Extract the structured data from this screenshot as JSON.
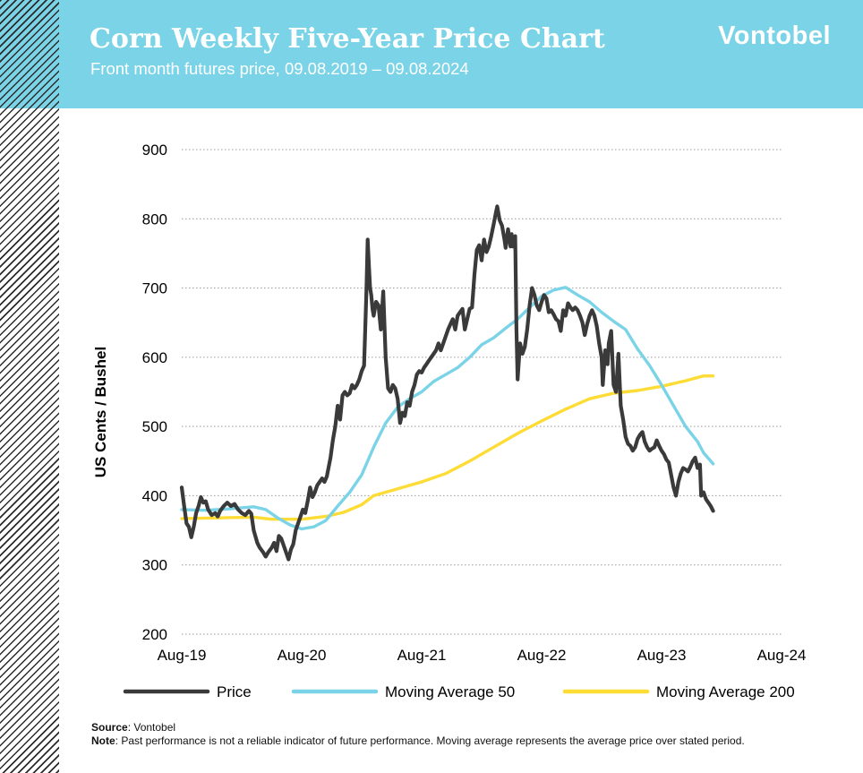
{
  "header": {
    "title": "Corn Weekly Five-Year Price Chart",
    "subtitle": "Front month futures price, 09.08.2019 – 09.08.2024",
    "brand": "Vontobel"
  },
  "colors": {
    "header_bg": "#7ad3e6",
    "price": "#3a3a3a",
    "ma50": "#7ad3e6",
    "ma200": "#fddc35"
  },
  "chart_data": {
    "type": "line",
    "title": "Corn Weekly Five-Year Price Chart",
    "xlabel": "",
    "ylabel": "US Cents / Bushel",
    "ylim": [
      200,
      900
    ],
    "yticks": [
      900,
      800,
      700,
      600,
      500,
      400,
      300,
      200
    ],
    "xlim": [
      0,
      5
    ],
    "xticks": [
      {
        "label": "Aug-19",
        "x": 0
      },
      {
        "label": "Aug-20",
        "x": 1
      },
      {
        "label": "Aug-21",
        "x": 2
      },
      {
        "label": "Aug-22",
        "x": 3
      },
      {
        "label": "Aug-23",
        "x": 4
      },
      {
        "label": "Aug-24",
        "x": 5
      }
    ],
    "grid": "horizontal-dotted",
    "legend": "bottom",
    "series": [
      {
        "name": "Price",
        "key": "price",
        "points": [
          [
            0.0,
            412
          ],
          [
            0.02,
            385
          ],
          [
            0.04,
            360
          ],
          [
            0.06,
            355
          ],
          [
            0.08,
            340
          ],
          [
            0.1,
            355
          ],
          [
            0.12,
            375
          ],
          [
            0.14,
            385
          ],
          [
            0.16,
            398
          ],
          [
            0.18,
            390
          ],
          [
            0.2,
            392
          ],
          [
            0.22,
            380
          ],
          [
            0.25,
            372
          ],
          [
            0.28,
            375
          ],
          [
            0.3,
            370
          ],
          [
            0.32,
            378
          ],
          [
            0.35,
            385
          ],
          [
            0.38,
            390
          ],
          [
            0.41,
            385
          ],
          [
            0.44,
            388
          ],
          [
            0.47,
            380
          ],
          [
            0.5,
            375
          ],
          [
            0.53,
            372
          ],
          [
            0.56,
            378
          ],
          [
            0.58,
            374
          ],
          [
            0.6,
            350
          ],
          [
            0.63,
            332
          ],
          [
            0.65,
            325
          ],
          [
            0.68,
            318
          ],
          [
            0.7,
            312
          ],
          [
            0.72,
            318
          ],
          [
            0.75,
            325
          ],
          [
            0.77,
            332
          ],
          [
            0.79,
            320
          ],
          [
            0.81,
            342
          ],
          [
            0.83,
            338
          ],
          [
            0.85,
            328
          ],
          [
            0.87,
            318
          ],
          [
            0.89,
            308
          ],
          [
            0.91,
            322
          ],
          [
            0.93,
            330
          ],
          [
            0.95,
            350
          ],
          [
            0.97,
            360
          ],
          [
            0.99,
            370
          ],
          [
            1.01,
            380
          ],
          [
            1.03,
            375
          ],
          [
            1.05,
            392
          ],
          [
            1.07,
            412
          ],
          [
            1.09,
            398
          ],
          [
            1.11,
            405
          ],
          [
            1.13,
            415
          ],
          [
            1.15,
            420
          ],
          [
            1.17,
            425
          ],
          [
            1.19,
            420
          ],
          [
            1.21,
            428
          ],
          [
            1.24,
            455
          ],
          [
            1.26,
            480
          ],
          [
            1.28,
            500
          ],
          [
            1.3,
            530
          ],
          [
            1.32,
            510
          ],
          [
            1.34,
            545
          ],
          [
            1.36,
            550
          ],
          [
            1.38,
            545
          ],
          [
            1.4,
            548
          ],
          [
            1.42,
            560
          ],
          [
            1.44,
            555
          ],
          [
            1.46,
            560
          ],
          [
            1.48,
            568
          ],
          [
            1.5,
            580
          ],
          [
            1.52,
            588
          ],
          [
            1.54,
            700
          ],
          [
            1.55,
            770
          ],
          [
            1.56,
            735
          ],
          [
            1.57,
            700
          ],
          [
            1.58,
            690
          ],
          [
            1.59,
            670
          ],
          [
            1.6,
            660
          ],
          [
            1.62,
            680
          ],
          [
            1.64,
            675
          ],
          [
            1.66,
            640
          ],
          [
            1.68,
            695
          ],
          [
            1.7,
            600
          ],
          [
            1.72,
            555
          ],
          [
            1.74,
            550
          ],
          [
            1.76,
            560
          ],
          [
            1.78,
            555
          ],
          [
            1.8,
            540
          ],
          [
            1.82,
            505
          ],
          [
            1.84,
            520
          ],
          [
            1.86,
            515
          ],
          [
            1.88,
            535
          ],
          [
            1.9,
            530
          ],
          [
            1.92,
            550
          ],
          [
            1.94,
            560
          ],
          [
            1.96,
            575
          ],
          [
            1.98,
            580
          ],
          [
            2.0,
            578
          ],
          [
            2.02,
            585
          ],
          [
            2.04,
            590
          ],
          [
            2.06,
            595
          ],
          [
            2.08,
            600
          ],
          [
            2.1,
            605
          ],
          [
            2.12,
            610
          ],
          [
            2.14,
            620
          ],
          [
            2.16,
            610
          ],
          [
            2.18,
            620
          ],
          [
            2.2,
            630
          ],
          [
            2.22,
            640
          ],
          [
            2.24,
            648
          ],
          [
            2.26,
            655
          ],
          [
            2.28,
            640
          ],
          [
            2.3,
            660
          ],
          [
            2.32,
            665
          ],
          [
            2.34,
            670
          ],
          [
            2.36,
            640
          ],
          [
            2.38,
            655
          ],
          [
            2.4,
            670
          ],
          [
            2.42,
            672
          ],
          [
            2.44,
            720
          ],
          [
            2.46,
            755
          ],
          [
            2.48,
            762
          ],
          [
            2.5,
            740
          ],
          [
            2.52,
            770
          ],
          [
            2.54,
            752
          ],
          [
            2.56,
            760
          ],
          [
            2.58,
            775
          ],
          [
            2.6,
            792
          ],
          [
            2.62,
            810
          ],
          [
            2.63,
            818
          ],
          [
            2.65,
            798
          ],
          [
            2.67,
            790
          ],
          [
            2.69,
            770
          ],
          [
            2.7,
            758
          ],
          [
            2.72,
            785
          ],
          [
            2.74,
            760
          ],
          [
            2.75,
            778
          ],
          [
            2.76,
            760
          ],
          [
            2.78,
            775
          ],
          [
            2.79,
            640
          ],
          [
            2.8,
            568
          ],
          [
            2.82,
            620
          ],
          [
            2.84,
            605
          ],
          [
            2.86,
            615
          ],
          [
            2.88,
            640
          ],
          [
            2.9,
            675
          ],
          [
            2.92,
            700
          ],
          [
            2.94,
            690
          ],
          [
            2.96,
            675
          ],
          [
            2.98,
            668
          ],
          [
            3.0,
            680
          ],
          [
            3.02,
            690
          ],
          [
            3.04,
            685
          ],
          [
            3.06,
            665
          ],
          [
            3.08,
            668
          ],
          [
            3.1,
            662
          ],
          [
            3.12,
            655
          ],
          [
            3.14,
            652
          ],
          [
            3.16,
            638
          ],
          [
            3.18,
            668
          ],
          [
            3.2,
            660
          ],
          [
            3.22,
            678
          ],
          [
            3.24,
            672
          ],
          [
            3.26,
            668
          ],
          [
            3.28,
            672
          ],
          [
            3.3,
            668
          ],
          [
            3.32,
            660
          ],
          [
            3.34,
            650
          ],
          [
            3.36,
            632
          ],
          [
            3.38,
            648
          ],
          [
            3.4,
            660
          ],
          [
            3.42,
            668
          ],
          [
            3.44,
            660
          ],
          [
            3.46,
            645
          ],
          [
            3.48,
            620
          ],
          [
            3.5,
            600
          ],
          [
            3.51,
            560
          ],
          [
            3.53,
            610
          ],
          [
            3.55,
            590
          ],
          [
            3.56,
            620
          ],
          [
            3.58,
            638
          ],
          [
            3.6,
            560
          ],
          [
            3.62,
            550
          ],
          [
            3.64,
            605
          ],
          [
            3.66,
            530
          ],
          [
            3.68,
            510
          ],
          [
            3.7,
            485
          ],
          [
            3.72,
            475
          ],
          [
            3.74,
            472
          ],
          [
            3.76,
            465
          ],
          [
            3.78,
            470
          ],
          [
            3.8,
            482
          ],
          [
            3.82,
            488
          ],
          [
            3.84,
            492
          ],
          [
            3.86,
            478
          ],
          [
            3.88,
            470
          ],
          [
            3.9,
            465
          ],
          [
            3.92,
            468
          ],
          [
            3.94,
            470
          ],
          [
            3.96,
            480
          ],
          [
            3.98,
            472
          ],
          [
            4.0,
            465
          ],
          [
            4.02,
            460
          ],
          [
            4.04,
            452
          ],
          [
            4.06,
            448
          ],
          [
            4.08,
            430
          ],
          [
            4.1,
            412
          ],
          [
            4.12,
            400
          ],
          [
            4.14,
            420
          ],
          [
            4.16,
            432
          ],
          [
            4.18,
            440
          ],
          [
            4.2,
            438
          ],
          [
            4.22,
            435
          ],
          [
            4.24,
            442
          ],
          [
            4.26,
            450
          ],
          [
            4.28,
            455
          ],
          [
            4.3,
            440
          ],
          [
            4.32,
            445
          ],
          [
            4.33,
            400
          ],
          [
            4.35,
            405
          ],
          [
            4.37,
            395
          ],
          [
            4.39,
            390
          ],
          [
            4.41,
            385
          ],
          [
            4.43,
            378
          ]
        ]
      },
      {
        "name": "Moving Average 50",
        "key": "ma50",
        "points": [
          [
            0.0,
            380
          ],
          [
            0.2,
            379
          ],
          [
            0.4,
            381
          ],
          [
            0.6,
            384
          ],
          [
            0.7,
            380
          ],
          [
            0.8,
            368
          ],
          [
            0.9,
            358
          ],
          [
            1.0,
            352
          ],
          [
            1.1,
            355
          ],
          [
            1.2,
            364
          ],
          [
            1.3,
            385
          ],
          [
            1.4,
            405
          ],
          [
            1.5,
            430
          ],
          [
            1.6,
            470
          ],
          [
            1.7,
            505
          ],
          [
            1.8,
            528
          ],
          [
            1.9,
            540
          ],
          [
            2.0,
            550
          ],
          [
            2.1,
            565
          ],
          [
            2.2,
            575
          ],
          [
            2.3,
            585
          ],
          [
            2.4,
            600
          ],
          [
            2.5,
            618
          ],
          [
            2.6,
            628
          ],
          [
            2.7,
            642
          ],
          [
            2.8,
            655
          ],
          [
            2.9,
            672
          ],
          [
            3.0,
            688
          ],
          [
            3.1,
            697
          ],
          [
            3.2,
            701
          ],
          [
            3.3,
            690
          ],
          [
            3.4,
            680
          ],
          [
            3.5,
            665
          ],
          [
            3.6,
            652
          ],
          [
            3.7,
            640
          ],
          [
            3.8,
            612
          ],
          [
            3.9,
            588
          ],
          [
            4.0,
            560
          ],
          [
            4.1,
            530
          ],
          [
            4.2,
            500
          ],
          [
            4.3,
            478
          ],
          [
            4.35,
            462
          ],
          [
            4.43,
            446
          ]
        ]
      },
      {
        "name": "Moving Average 200",
        "key": "ma200",
        "points": [
          [
            0.0,
            367
          ],
          [
            0.3,
            368
          ],
          [
            0.6,
            369
          ],
          [
            0.75,
            366
          ],
          [
            1.0,
            366
          ],
          [
            1.2,
            370
          ],
          [
            1.35,
            376
          ],
          [
            1.5,
            387
          ],
          [
            1.6,
            400
          ],
          [
            1.8,
            410
          ],
          [
            2.0,
            420
          ],
          [
            2.2,
            432
          ],
          [
            2.4,
            450
          ],
          [
            2.6,
            470
          ],
          [
            2.8,
            490
          ],
          [
            3.0,
            508
          ],
          [
            3.2,
            525
          ],
          [
            3.4,
            540
          ],
          [
            3.6,
            548
          ],
          [
            3.8,
            552
          ],
          [
            4.0,
            558
          ],
          [
            4.2,
            566
          ],
          [
            4.35,
            573
          ],
          [
            4.43,
            573
          ]
        ]
      }
    ]
  },
  "footer": {
    "source_label": "Source",
    "source_text": ": Vontobel",
    "note_label": "Note",
    "note_text": ": Past performance is not a reliable indicator of future performance. Moving average represents the average price over stated period."
  }
}
